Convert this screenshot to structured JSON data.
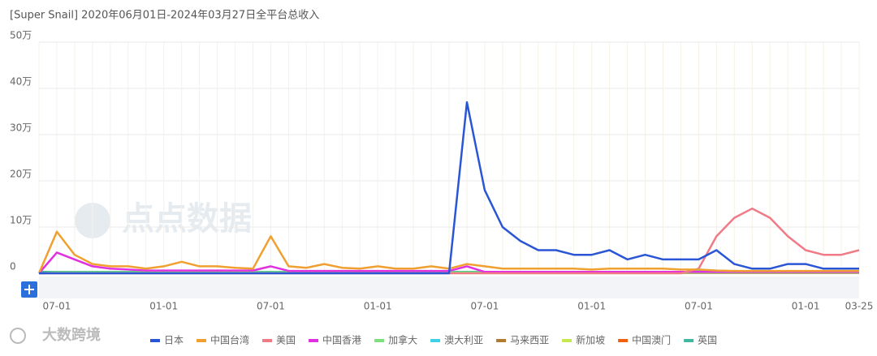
{
  "chart_data": {
    "type": "line",
    "title": "[Super Snail]  2020年06月01日-2024年03月27日全平台总收入",
    "watermark": "点点数据",
    "brand": "大数跨境",
    "categories": [
      null,
      "07-01",
      null,
      null,
      null,
      null,
      null,
      "01-01",
      null,
      null,
      null,
      null,
      null,
      "07-01",
      null,
      null,
      null,
      null,
      null,
      "01-01",
      null,
      null,
      null,
      null,
      null,
      "07-01",
      null,
      null,
      null,
      null,
      null,
      "01-01",
      null,
      null,
      null,
      null,
      null,
      "07-01",
      null,
      null,
      null,
      null,
      null,
      "01-01",
      null,
      null,
      "03-25"
    ],
    "ylim": [
      0,
      50
    ],
    "yticks": [
      0,
      {
        "value": 10,
        "label": "10万"
      },
      {
        "value": 20,
        "label": "20万"
      },
      {
        "value": 30,
        "label": "30万"
      },
      {
        "value": 40,
        "label": "40万"
      },
      {
        "value": 50,
        "label": "50万"
      }
    ],
    "grid": true,
    "legend": "bottom",
    "series": [
      {
        "name": "日本",
        "color": "#2a56d6",
        "values": [
          0,
          0,
          0,
          0,
          0,
          0,
          0,
          0,
          0,
          0,
          0,
          0,
          0,
          0,
          0,
          0,
          0,
          0,
          0,
          0,
          0,
          0,
          0,
          0,
          37,
          18,
          10,
          7,
          5,
          5,
          4,
          4,
          5,
          3,
          4,
          3,
          3,
          3,
          5,
          2,
          1,
          1,
          2,
          2,
          1,
          1,
          1
        ]
      },
      {
        "name": "中国台湾",
        "color": "#f0a030",
        "values": [
          0,
          9,
          4,
          2,
          1.5,
          1.5,
          1,
          1.5,
          2.5,
          1.5,
          1.5,
          1.2,
          1,
          8,
          1.5,
          1.2,
          2,
          1.2,
          1,
          1.5,
          1,
          1,
          1.5,
          1,
          2,
          1.5,
          1,
          1,
          1,
          1,
          1,
          0.8,
          1,
          1,
          1,
          1,
          0.8,
          0.8,
          0.6,
          0.5,
          0.5,
          0.5,
          0.5,
          0.5,
          0.5,
          0.5,
          0.5
        ]
      },
      {
        "name": "美国",
        "color": "#f07a85",
        "values": [
          0,
          0,
          0,
          0,
          0,
          0,
          0,
          0,
          0,
          0,
          0,
          0,
          0,
          0,
          0,
          0,
          0,
          0,
          0,
          0,
          0,
          0,
          0,
          0,
          0,
          0,
          0,
          0,
          0,
          0,
          0,
          0,
          0,
          0,
          0,
          0,
          0,
          1,
          8,
          12,
          14,
          12,
          8,
          5,
          4,
          4,
          5
        ]
      },
      {
        "name": "中国香港",
        "color": "#e030e0",
        "values": [
          0,
          4.5,
          3,
          1.5,
          1,
          0.8,
          0.6,
          0.6,
          0.6,
          0.6,
          0.6,
          0.6,
          0.6,
          1.5,
          0.5,
          0.5,
          0.5,
          0.5,
          0.5,
          0.5,
          0.5,
          0.5,
          0.5,
          0.5,
          1.5,
          0.3,
          0.3,
          0.3,
          0.3,
          0.3,
          0.3,
          0.3,
          0.3,
          0.3,
          0.3,
          0.3,
          0.3,
          0.3,
          0.3,
          0.3,
          0.3,
          0.3,
          0.3,
          0.3,
          0.3,
          0.3,
          0.3
        ]
      },
      {
        "name": "加拿大",
        "color": "#7ee07a",
        "values": [
          0,
          0.2,
          0.2,
          0.2,
          0.2,
          0.2,
          0.2,
          0.2,
          0.2,
          0.2,
          0.2,
          0.2,
          0.2,
          0.2,
          0.2,
          0.2,
          0.2,
          0.2,
          0.2,
          0.2,
          0.2,
          0.2,
          0.2,
          0.2,
          0.2,
          0.2,
          0.2,
          0.2,
          0.2,
          0.2,
          0.2,
          0.2,
          0.2,
          0.2,
          0.2,
          0.2,
          0.2,
          0.2,
          0.2,
          0.2,
          0.2,
          0.2,
          0.2,
          0.2,
          0.2,
          0.2,
          0.2
        ]
      },
      {
        "name": "澳大利亚",
        "color": "#40d0e8",
        "values": [
          0,
          0.1,
          0.1,
          0.1,
          0.1,
          0.1,
          0.1,
          0.1,
          0.1,
          0.1,
          0.1,
          0.1,
          0.1,
          0.1,
          0.1,
          0.1,
          0.1,
          0.1,
          0.1,
          0.1,
          0.1,
          0.1,
          0.1,
          0.1,
          0.1,
          0.1,
          0.1,
          0.1,
          0.1,
          0.1,
          0.1,
          0.1,
          0.1,
          0.1,
          0.1,
          0.1,
          0.1,
          0.6,
          0.6,
          0.4,
          0.3,
          0.3,
          0.3,
          0.3,
          0.3,
          0.3,
          0.3
        ]
      },
      {
        "name": "马来西亚",
        "color": "#b07a30",
        "values": [
          0,
          0.1,
          0.1,
          0.1,
          0.1,
          0.1,
          0.1,
          0.1,
          0.1,
          0.1,
          0.1,
          0.1,
          0.1,
          0.1,
          0.1,
          0.1,
          0.1,
          0.1,
          0.1,
          0.1,
          0.1,
          0.1,
          0.1,
          0.1,
          0.1,
          0.1,
          0.1,
          0.1,
          0.1,
          0.1,
          0.1,
          0.1,
          0.1,
          0.1,
          0.1,
          0.1,
          0.1,
          0.1,
          0.1,
          0.1,
          0.1,
          0.1,
          0.1,
          0.1,
          0.1,
          0.1,
          0.1
        ]
      },
      {
        "name": "新加坡",
        "color": "#c8e850",
        "values": [
          0,
          0.1,
          0.1,
          0.1,
          0.1,
          0.1,
          0.1,
          0.1,
          0.1,
          0.1,
          0.1,
          0.1,
          0.1,
          0.1,
          0.1,
          0.1,
          0.1,
          0.1,
          0.1,
          0.1,
          0.1,
          0.1,
          0.1,
          0.1,
          0.1,
          0.1,
          0.1,
          0.1,
          0.1,
          0.1,
          0.1,
          0.1,
          0.1,
          0.1,
          0.1,
          0.1,
          0.1,
          0.1,
          0.1,
          0.1,
          0.1,
          0.1,
          0.1,
          0.1,
          0.1,
          0.1,
          0.1
        ]
      },
      {
        "name": "中国澳门",
        "color": "#f06010",
        "values": [
          0,
          0.1,
          0.1,
          0.1,
          0.1,
          0.1,
          0.1,
          0.1,
          0.1,
          0.1,
          0.1,
          0.1,
          0.1,
          0.1,
          0.1,
          0.1,
          0.1,
          0.1,
          0.1,
          0.1,
          0.1,
          0.1,
          0.1,
          0.1,
          0.1,
          0.1,
          0.1,
          0.1,
          0.1,
          0.1,
          0.1,
          0.1,
          0.1,
          0.1,
          0.1,
          0.1,
          0.1,
          0.1,
          0.1,
          0.1,
          0.1,
          0.1,
          0.1,
          0.1,
          0.1,
          0.1,
          0.1
        ]
      },
      {
        "name": "英国",
        "color": "#40b8a0",
        "values": [
          0.3,
          0.3,
          0.3,
          0.3,
          0.3,
          0.3,
          0.3,
          0.3,
          0.3,
          0.3,
          0.3,
          0.3,
          0.3,
          0.3,
          0.3,
          0.3,
          0.3,
          0.3,
          0.3,
          0.3,
          0.3,
          0.3,
          0.3,
          0.3,
          0.3,
          0.3,
          0.3,
          0.3,
          0.3,
          0.3,
          0.3,
          0.3,
          0.3,
          0.3,
          0.3,
          0.3,
          0.3,
          0.3,
          0.3,
          0.3,
          0.3,
          0.3,
          0.3,
          0.3,
          0.3,
          0.3,
          0.3
        ]
      }
    ]
  }
}
